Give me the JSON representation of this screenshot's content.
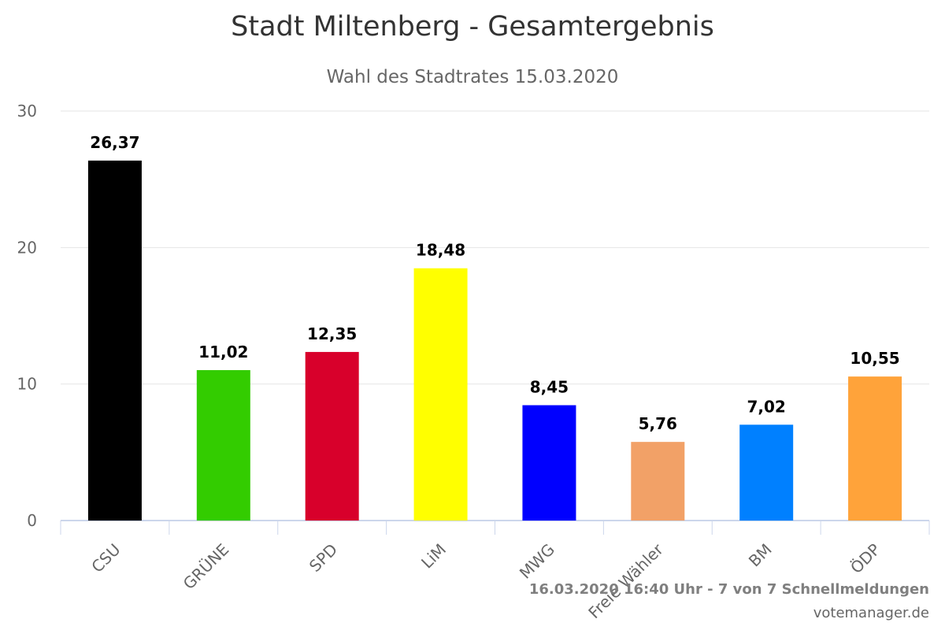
{
  "chart_data": {
    "type": "bar",
    "title": "Stadt Miltenberg - Gesamtergebnis",
    "subtitle": "Wahl des Stadtrates 15.03.2020",
    "categories": [
      "CSU",
      "GRÜNE",
      "SPD",
      "LiM",
      "MWG",
      "Freie Wähler",
      "BM",
      "ÖDP"
    ],
    "values": [
      26.37,
      11.02,
      12.35,
      18.48,
      8.45,
      5.76,
      7.02,
      10.55
    ],
    "value_labels": [
      "26,37",
      "11,02",
      "12,35",
      "18,48",
      "8,45",
      "5,76",
      "7,02",
      "10,55"
    ],
    "colors": [
      "#000000",
      "#33cc00",
      "#d8002b",
      "#ffff00",
      "#0000ff",
      "#f2a167",
      "#0080ff",
      "#ffa33a"
    ],
    "ylim": [
      0,
      30
    ],
    "yticks": [
      0,
      10,
      20,
      30
    ],
    "grid": true,
    "legend": "none",
    "xlabel": "",
    "ylabel": ""
  },
  "footer": {
    "status": "16.03.2020 16:40 Uhr - 7 von 7 Schnellmeldungen",
    "credit": "votemanager.de"
  }
}
